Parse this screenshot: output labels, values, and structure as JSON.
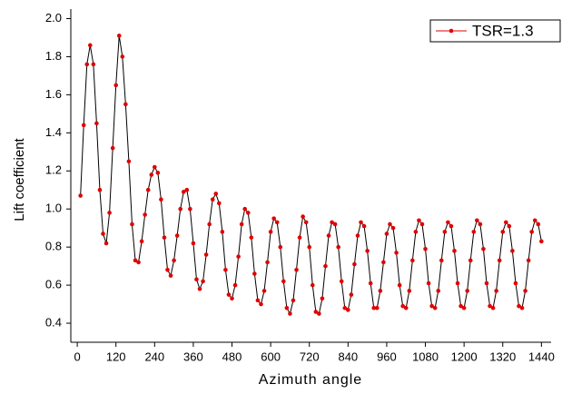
{
  "chart_data": {
    "type": "line",
    "x_label": "Azimuth angle",
    "y_label": "Lift coefficient",
    "x": [
      10,
      20,
      30,
      40,
      50,
      60,
      70,
      80,
      90,
      100,
      110,
      120,
      130,
      140,
      150,
      160,
      170,
      180,
      190,
      200,
      210,
      220,
      230,
      240,
      250,
      260,
      270,
      280,
      290,
      300,
      310,
      320,
      330,
      340,
      350,
      360,
      370,
      380,
      390,
      400,
      410,
      420,
      430,
      440,
      450,
      460,
      470,
      480,
      490,
      500,
      510,
      520,
      530,
      540,
      550,
      560,
      570,
      580,
      590,
      600,
      610,
      620,
      630,
      640,
      650,
      660,
      670,
      680,
      690,
      700,
      710,
      720,
      730,
      740,
      750,
      760,
      770,
      780,
      790,
      800,
      810,
      820,
      830,
      840,
      850,
      860,
      870,
      880,
      890,
      900,
      910,
      920,
      930,
      940,
      950,
      960,
      970,
      980,
      990,
      1000,
      1010,
      1020,
      1030,
      1040,
      1050,
      1060,
      1070,
      1080,
      1090,
      1100,
      1110,
      1120,
      1130,
      1140,
      1150,
      1160,
      1170,
      1180,
      1190,
      1200,
      1210,
      1220,
      1230,
      1240,
      1250,
      1260,
      1270,
      1280,
      1290,
      1300,
      1310,
      1320,
      1330,
      1340,
      1350,
      1360,
      1370,
      1380,
      1390,
      1400,
      1410,
      1420,
      1430,
      1440
    ],
    "series": [
      {
        "name": "TSR=1.3",
        "color": "#e00000",
        "line_color": "#000000",
        "values": [
          1.07,
          1.44,
          1.76,
          1.86,
          1.76,
          1.45,
          1.1,
          0.87,
          0.82,
          0.98,
          1.32,
          1.65,
          1.91,
          1.8,
          1.55,
          1.25,
          0.92,
          0.73,
          0.72,
          0.83,
          0.97,
          1.1,
          1.18,
          1.22,
          1.19,
          1.05,
          0.85,
          0.68,
          0.65,
          0.73,
          0.86,
          1.0,
          1.09,
          1.1,
          1.0,
          0.82,
          0.63,
          0.58,
          0.62,
          0.76,
          0.92,
          1.05,
          1.08,
          1.03,
          0.88,
          0.68,
          0.55,
          0.53,
          0.6,
          0.75,
          0.92,
          1.0,
          0.98,
          0.85,
          0.66,
          0.52,
          0.5,
          0.57,
          0.72,
          0.88,
          0.95,
          0.93,
          0.8,
          0.62,
          0.48,
          0.45,
          0.52,
          0.68,
          0.85,
          0.96,
          0.93,
          0.8,
          0.6,
          0.46,
          0.45,
          0.53,
          0.7,
          0.86,
          0.93,
          0.92,
          0.8,
          0.62,
          0.48,
          0.47,
          0.55,
          0.71,
          0.86,
          0.93,
          0.91,
          0.78,
          0.61,
          0.48,
          0.48,
          0.57,
          0.72,
          0.87,
          0.92,
          0.9,
          0.77,
          0.6,
          0.49,
          0.48,
          0.57,
          0.73,
          0.88,
          0.94,
          0.92,
          0.79,
          0.61,
          0.49,
          0.48,
          0.57,
          0.73,
          0.88,
          0.93,
          0.91,
          0.78,
          0.61,
          0.49,
          0.48,
          0.57,
          0.73,
          0.88,
          0.94,
          0.92,
          0.79,
          0.61,
          0.49,
          0.48,
          0.57,
          0.73,
          0.88,
          0.93,
          0.91,
          0.78,
          0.61,
          0.49,
          0.48,
          0.57,
          0.73,
          0.88,
          0.94,
          0.92,
          0.83
        ]
      }
    ],
    "xlim": [
      -20,
      1470
    ],
    "ylim": [
      0.3,
      2.05
    ],
    "xticks": [
      0,
      120,
      240,
      360,
      480,
      600,
      720,
      840,
      960,
      1080,
      1200,
      1320,
      1440
    ],
    "yticks": [
      0.4,
      0.6,
      0.8,
      {
        "value": 1.0,
        "label": "1.0"
      },
      1.2,
      1.4,
      1.6,
      1.8,
      {
        "value": 2.0,
        "label": "2.0"
      }
    ],
    "legend": "upper right"
  }
}
